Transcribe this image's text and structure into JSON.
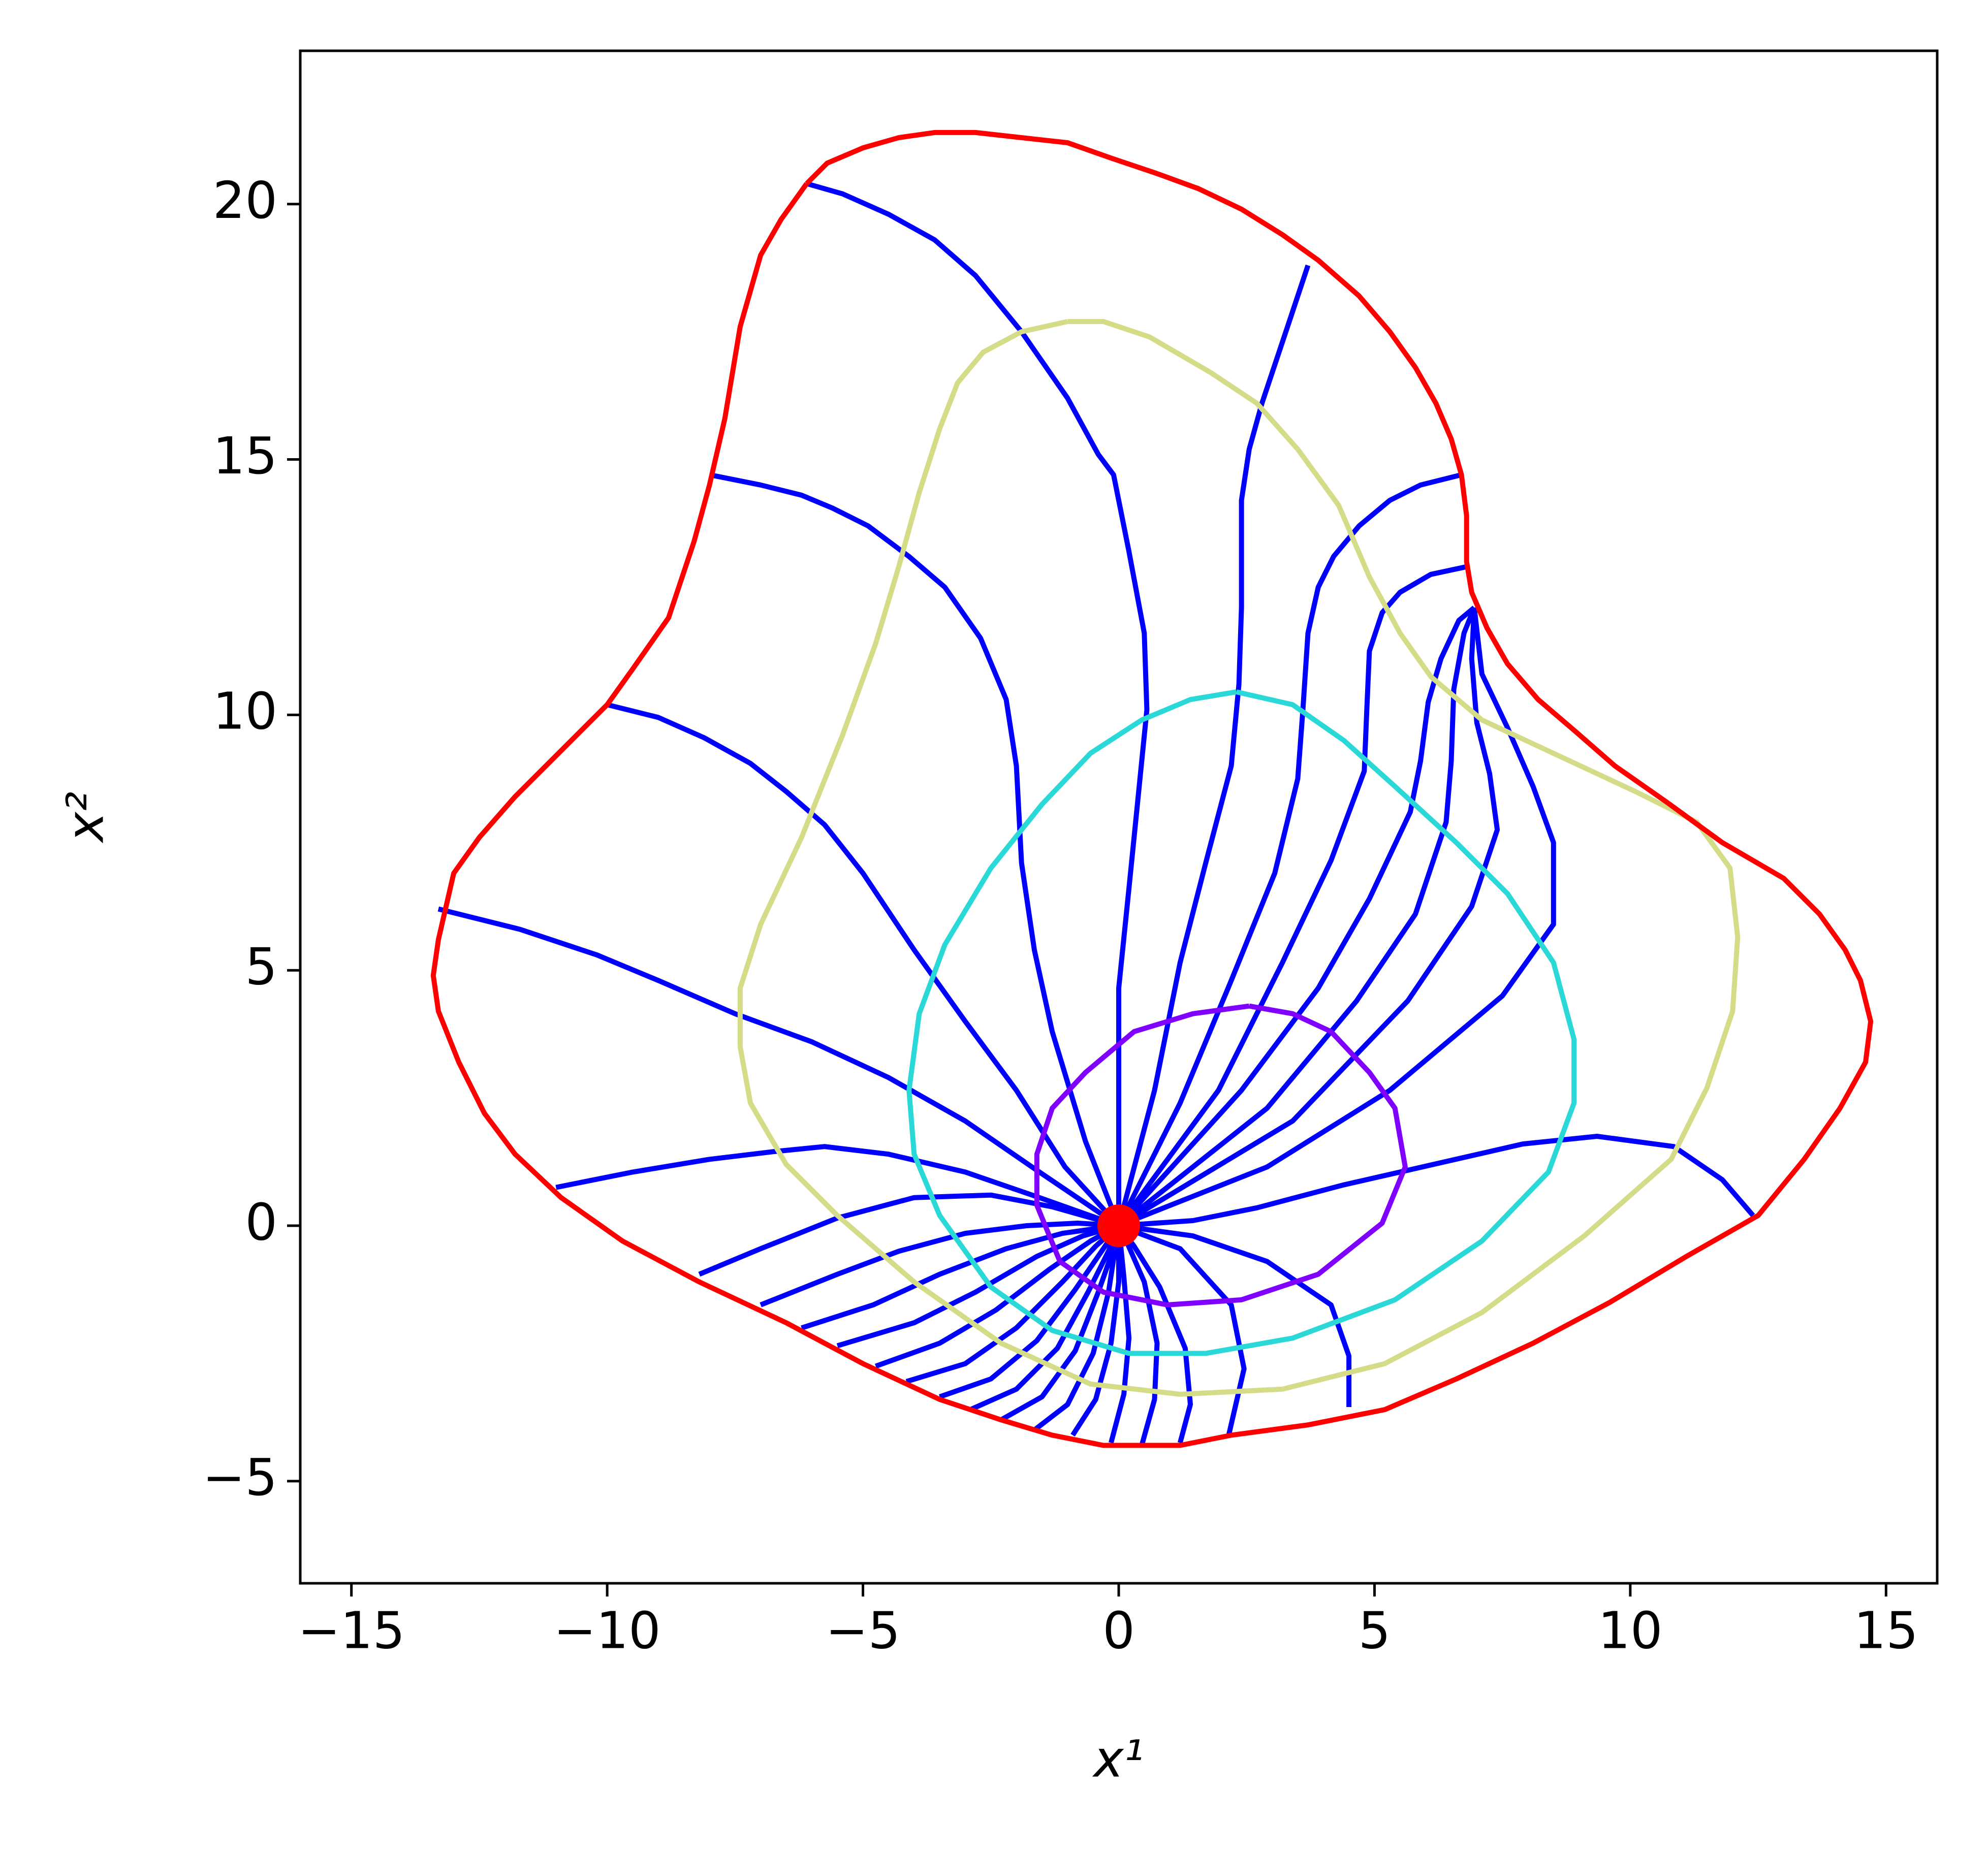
{
  "chart_data": {
    "type": "line",
    "xlabel": "x¹",
    "ylabel": "x²",
    "xlim": [
      -16,
      16
    ],
    "ylim": [
      -7,
      23
    ],
    "xticks": [
      {
        "value": -15,
        "label": "−15"
      },
      {
        "value": -10,
        "label": "−10"
      },
      {
        "value": -5,
        "label": "−5"
      },
      0,
      5,
      10,
      15
    ],
    "yticks": [
      {
        "value": -5,
        "label": "−5"
      },
      0,
      5,
      10,
      15,
      20
    ],
    "series": [
      {
        "color": "#0000ff",
        "x": [
          -6.1,
          -5.4,
          -4.5,
          -3.6,
          -2.8,
          -1.9,
          -1.0,
          -0.4,
          -0.1,
          0.2,
          0.5,
          0.55,
          0.4,
          0.2,
          0.0,
          0,
          0
        ],
        "values": [
          20.4,
          20.2,
          19.8,
          19.3,
          18.6,
          17.5,
          16.2,
          15.1,
          14.7,
          13.2,
          11.6,
          10.1,
          8.6,
          6.6,
          4.65,
          2.4,
          0
        ]
      },
      {
        "color": "#0000ff",
        "x": [
          3.7,
          3.3,
          2.8,
          2.55,
          2.4,
          2.4,
          2.35,
          2.2,
          1.7,
          1.2,
          0.7,
          0
        ],
        "values": [
          18.8,
          17.6,
          16.1,
          15.2,
          14.2,
          12.1,
          10.6,
          9.0,
          7.1,
          5.15,
          2.65,
          0
        ]
      },
      {
        "color": "#0000ff",
        "x": [
          -8.0,
          -7.0,
          -6.2,
          -5.6,
          -4.9,
          -4.1,
          -3.4,
          -2.7,
          -2.2,
          -2.0,
          -1.9,
          -1.65,
          -1.3,
          -0.65,
          0
        ],
        "values": [
          14.7,
          14.5,
          14.3,
          14.05,
          13.7,
          13.1,
          12.5,
          11.5,
          10.3,
          9.0,
          7.1,
          5.4,
          3.8,
          1.65,
          0
        ]
      },
      {
        "color": "#0000ff",
        "x": [
          6.7,
          5.9,
          5.3,
          4.7,
          4.2,
          3.9,
          3.7,
          3.6,
          3.5,
          3.05,
          2.2,
          1.2,
          0
        ],
        "values": [
          14.7,
          14.5,
          14.2,
          13.7,
          13.1,
          12.5,
          11.6,
          10.1,
          8.75,
          6.9,
          4.8,
          2.4,
          0
        ]
      },
      {
        "color": "#0000ff",
        "x": [
          -10.0,
          -9.0,
          -8.1,
          -7.2,
          -6.5,
          -5.75,
          -5.0,
          -4.0,
          -3.0,
          -2.0,
          -1.05,
          0
        ],
        "values": [
          10.2,
          9.95,
          9.55,
          9.05,
          8.5,
          7.85,
          6.9,
          5.4,
          4.0,
          2.65,
          1.15,
          0
        ]
      },
      {
        "color": "#0000ff",
        "x": [
          6.8,
          6.1,
          5.5,
          5.15,
          4.9,
          4.85,
          4.8,
          4.15,
          3.2,
          1.95,
          0
        ],
        "values": [
          12.9,
          12.75,
          12.4,
          12.0,
          11.25,
          10.1,
          8.9,
          7.15,
          5.15,
          2.65,
          0
        ]
      },
      {
        "color": "#0000ff",
        "x": [
          6.95,
          6.65,
          6.3,
          6.05,
          5.9,
          5.7,
          4.9,
          3.9,
          2.4,
          0
        ],
        "values": [
          12.1,
          11.85,
          11.1,
          10.25,
          9.1,
          8.1,
          6.4,
          4.65,
          2.65,
          0
        ]
      },
      {
        "color": "#0000ff",
        "x": [
          6.95,
          6.75,
          6.55,
          6.5,
          6.4,
          5.8,
          4.65,
          2.9,
          0
        ],
        "values": [
          12.1,
          11.6,
          10.5,
          9.1,
          7.9,
          6.1,
          4.4,
          2.3,
          0
        ]
      },
      {
        "color": "#0000ff",
        "x": [
          6.95,
          6.9,
          7.0,
          7.25,
          7.4,
          6.9,
          5.65,
          3.4,
          0
        ],
        "values": [
          12.1,
          11.1,
          9.85,
          8.85,
          7.75,
          6.25,
          4.4,
          2.05,
          0
        ]
      },
      {
        "color": "#0000ff",
        "x": [
          6.95,
          7.1,
          7.6,
          8.1,
          8.5,
          8.5,
          7.5,
          5.3,
          2.9,
          0
        ],
        "values": [
          12.1,
          10.8,
          9.75,
          8.6,
          7.5,
          5.9,
          4.5,
          2.65,
          1.15,
          0
        ]
      },
      {
        "color": "#0000ff",
        "x": [
          -13.3,
          -11.7,
          -10.2,
          -9.0,
          -7.5,
          -6.0,
          -4.5,
          -3.0,
          -1.55,
          0
        ],
        "values": [
          6.2,
          5.8,
          5.3,
          4.8,
          4.15,
          3.6,
          2.9,
          2.05,
          1.05,
          0
        ]
      },
      {
        "color": "#0000ff",
        "x": [
          -11.0,
          -9.5,
          -8.0,
          -6.75,
          -5.75,
          -4.5,
          -3.0,
          -1.55,
          0
        ],
        "values": [
          0.75,
          1.05,
          1.3,
          1.45,
          1.55,
          1.4,
          1.05,
          0.55,
          0
        ]
      },
      {
        "color": "#0000ff",
        "x": [
          12.4,
          11.8,
          10.85,
          9.35,
          7.9,
          6.15,
          4.4,
          2.7,
          1.45,
          0
        ],
        "values": [
          0.2,
          0.9,
          1.55,
          1.75,
          1.6,
          1.2,
          0.8,
          0.35,
          0.1,
          0
        ]
      },
      {
        "color": "#0000ff",
        "x": [
          -8.2,
          -7.0,
          -5.5,
          -4.0,
          -2.5,
          -1.3,
          0
        ],
        "values": [
          -0.95,
          -0.45,
          0.15,
          0.55,
          0.6,
          0.37,
          0
        ]
      },
      {
        "color": "#0000ff",
        "x": [
          -7.0,
          -5.5,
          -4.3,
          -3.0,
          -1.8,
          -0.8,
          0
        ],
        "values": [
          -1.55,
          -0.95,
          -0.5,
          -0.15,
          0.0,
          0.05,
          0
        ]
      },
      {
        "color": "#0000ff",
        "x": [
          -6.2,
          -4.8,
          -3.5,
          -2.2,
          -1.1,
          -0.4,
          0
        ],
        "values": [
          -2.0,
          -1.55,
          -0.95,
          -0.45,
          -0.15,
          -0.05,
          0
        ]
      },
      {
        "color": "#0000ff",
        "x": [
          -5.5,
          -4.0,
          -2.8,
          -1.6,
          -0.7,
          0
        ],
        "values": [
          -2.35,
          -1.9,
          -1.3,
          -0.6,
          -0.2,
          0
        ]
      },
      {
        "color": "#0000ff",
        "x": [
          -4.75,
          -3.5,
          -2.4,
          -1.35,
          -0.55,
          0
        ],
        "values": [
          -2.75,
          -2.3,
          -1.65,
          -0.85,
          -0.3,
          0
        ]
      },
      {
        "color": "#0000ff",
        "x": [
          -4.15,
          -3.0,
          -2.0,
          -1.1,
          -0.45,
          0
        ],
        "values": [
          -3.05,
          -2.7,
          -2.0,
          -1.1,
          -0.4,
          0
        ]
      },
      {
        "color": "#0000ff",
        "x": [
          -3.5,
          -2.5,
          -1.6,
          -0.85,
          -0.3,
          0
        ],
        "values": [
          -3.35,
          -3.0,
          -2.25,
          -1.25,
          -0.45,
          0
        ]
      },
      {
        "color": "#0000ff",
        "x": [
          -2.9,
          -2.0,
          -1.2,
          -0.6,
          -0.2,
          0
        ],
        "values": [
          -3.6,
          -3.2,
          -2.4,
          -1.3,
          -0.5,
          0
        ]
      },
      {
        "color": "#0000ff",
        "x": [
          -2.3,
          -1.5,
          -0.85,
          -0.4,
          -0.1,
          0
        ],
        "values": [
          -3.8,
          -3.35,
          -2.45,
          -1.3,
          -0.45,
          0
        ]
      },
      {
        "color": "#0000ff",
        "x": [
          -1.65,
          -1.0,
          -0.5,
          -0.2,
          0
        ],
        "values": [
          -4.0,
          -3.5,
          -2.5,
          -1.3,
          0
        ]
      },
      {
        "color": "#0000ff",
        "x": [
          -0.9,
          -0.45,
          -0.15,
          0.0,
          0
        ],
        "values": [
          -4.1,
          -3.4,
          -2.3,
          -1.1,
          0
        ]
      },
      {
        "color": "#0000ff",
        "x": [
          -0.15,
          0.1,
          0.2,
          0.1,
          0
        ],
        "values": [
          -4.25,
          -3.3,
          -2.2,
          -1.0,
          0
        ]
      },
      {
        "color": "#0000ff",
        "x": [
          0.45,
          0.7,
          0.75,
          0.5,
          0.15,
          0
        ],
        "values": [
          -4.3,
          -3.4,
          -2.3,
          -1.1,
          -0.3,
          0
        ]
      },
      {
        "color": "#0000ff",
        "x": [
          1.2,
          1.4,
          1.3,
          0.8,
          0.3,
          0
        ],
        "values": [
          -4.25,
          -3.5,
          -2.4,
          -1.2,
          -0.4,
          0
        ]
      },
      {
        "color": "#0000ff",
        "x": [
          2.15,
          2.45,
          2.2,
          1.2,
          0
        ],
        "values": [
          -4.1,
          -2.8,
          -1.55,
          -0.45,
          0
        ]
      },
      {
        "color": "#0000ff",
        "x": [
          4.5,
          4.5,
          4.15,
          2.9,
          1.45,
          0
        ],
        "values": [
          -3.55,
          -2.55,
          -1.55,
          -0.7,
          -0.2,
          0
        ]
      },
      {
        "color": "#d4dc87",
        "x": [
          -1.0,
          -1.9,
          -2.65,
          -3.15,
          -3.5,
          -3.9,
          -4.3,
          -4.75,
          -5.4,
          -6.2,
          -7.0,
          -7.4,
          -7.4,
          -7.2,
          -6.5,
          -5.5,
          -4.0,
          -2.3,
          -0.55,
          1.2,
          3.2,
          5.2,
          7.1,
          9.1,
          10.8,
          11.5,
          12.0,
          12.1,
          11.95,
          11.3,
          10.1,
          8.6,
          7.1,
          6.1,
          5.5,
          4.9,
          4.3,
          3.5,
          2.7,
          1.8,
          0.6,
          -0.3,
          -1.0
        ],
        "values": [
          17.7,
          17.5,
          17.1,
          16.5,
          15.6,
          14.35,
          12.9,
          11.4,
          9.6,
          7.6,
          5.9,
          4.65,
          3.5,
          2.4,
          1.2,
          0.2,
          -1.1,
          -2.3,
          -3.1,
          -3.3,
          -3.2,
          -2.7,
          -1.7,
          -0.2,
          1.3,
          2.7,
          4.2,
          5.65,
          7.0,
          7.9,
          8.5,
          9.2,
          9.9,
          10.75,
          11.6,
          12.7,
          14.1,
          15.2,
          16.1,
          16.7,
          17.4,
          17.7,
          17.7
        ]
      },
      {
        "color": "#2ad8d8",
        "x": [
          2.3,
          1.4,
          0.45,
          -0.55,
          -1.5,
          -2.5,
          -3.4,
          -3.9,
          -4.1,
          -4.0,
          -3.5,
          -2.5,
          -1.3,
          0.2,
          1.7,
          3.4,
          5.4,
          7.1,
          8.4,
          8.9,
          8.9,
          8.5,
          7.6,
          6.6,
          5.4,
          4.4,
          3.4,
          2.3
        ],
        "values": [
          10.45,
          10.3,
          9.9,
          9.25,
          8.25,
          7.0,
          5.5,
          4.15,
          2.65,
          1.4,
          0.2,
          -1.2,
          -2.05,
          -2.5,
          -2.5,
          -2.2,
          -1.45,
          -0.3,
          1.05,
          2.4,
          3.65,
          5.15,
          6.5,
          7.5,
          8.6,
          9.5,
          10.2,
          10.45
        ]
      },
      {
        "color": "#8000ff",
        "x": [
          2.55,
          1.45,
          0.3,
          -0.65,
          -1.3,
          -1.6,
          -1.6,
          -1.15,
          -0.3,
          0.95,
          2.4,
          3.9,
          5.15,
          5.6,
          5.4,
          4.9,
          4.15,
          3.4,
          2.55
        ],
        "values": [
          4.3,
          4.15,
          3.8,
          3.0,
          2.3,
          1.4,
          0.4,
          -0.7,
          -1.3,
          -1.55,
          -1.45,
          -0.95,
          0.05,
          1.15,
          2.3,
          3.0,
          3.8,
          4.15,
          4.3
        ]
      },
      {
        "color": "#ff0000",
        "x": [
          -6.1,
          -5.7,
          -5.0,
          -4.3,
          -3.6,
          -2.8,
          -1.9,
          -1.0,
          -0.15,
          0.74,
          1.56,
          2.4,
          3.2,
          3.9,
          4.7,
          5.3,
          5.8,
          6.2,
          6.5,
          6.7,
          6.8,
          6.8,
          6.9,
          7.2,
          7.6,
          8.2,
          8.9,
          9.7,
          10.7,
          11.8,
          13.0,
          13.7,
          14.2,
          14.5,
          14.7,
          14.6,
          14.1,
          13.4,
          12.5,
          11.1,
          9.6,
          8.1,
          6.6,
          5.2,
          3.7,
          2.2,
          1.2,
          0.45,
          -0.3,
          -1.3,
          -2.3,
          -3.5,
          -5.0,
          -6.5,
          -8.2,
          -9.7,
          -10.9,
          -11.8,
          -12.4,
          -12.9,
          -13.3,
          -13.4,
          -13.3,
          -13.0,
          -12.5,
          -11.8,
          -10.9,
          -10.0,
          -9.5,
          -8.8,
          -8.3,
          -8.0,
          -7.7,
          -7.4,
          -7.0,
          -6.6,
          -6.1
        ],
        "values": [
          20.4,
          20.8,
          21.1,
          21.3,
          21.4,
          21.4,
          21.3,
          21.2,
          20.9,
          20.6,
          20.3,
          19.9,
          19.4,
          18.9,
          18.2,
          17.5,
          16.8,
          16.1,
          15.4,
          14.7,
          13.9,
          13.0,
          12.4,
          11.7,
          11.0,
          10.3,
          9.7,
          9.0,
          8.3,
          7.5,
          6.8,
          6.1,
          5.4,
          4.8,
          4.0,
          3.2,
          2.3,
          1.3,
          0.2,
          -0.6,
          -1.5,
          -2.3,
          -3.0,
          -3.6,
          -3.9,
          -4.1,
          -4.3,
          -4.3,
          -4.3,
          -4.1,
          -3.8,
          -3.4,
          -2.7,
          -1.9,
          -1.1,
          -0.3,
          0.55,
          1.4,
          2.2,
          3.2,
          4.2,
          4.9,
          5.6,
          6.9,
          7.6,
          8.4,
          9.3,
          10.2,
          10.9,
          11.9,
          13.4,
          14.5,
          15.8,
          17.6,
          19.0,
          19.7,
          20.4
        ]
      },
      {
        "type": "scatter",
        "color": "#ff0000",
        "x": [
          0
        ],
        "values": [
          0
        ]
      }
    ]
  }
}
